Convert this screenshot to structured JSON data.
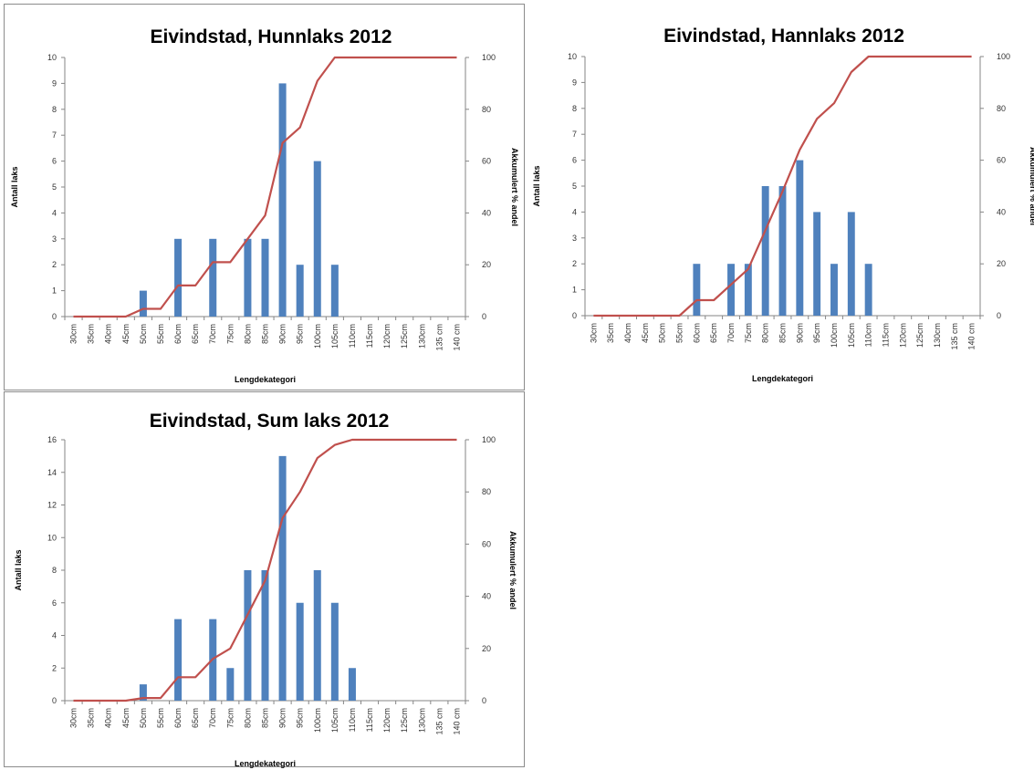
{
  "chart_data": [
    {
      "type": "bar",
      "title": "Eivindstad, Hunnlaks 2012",
      "xlabel": "Lengdekategori",
      "ylabel": "Antall laks",
      "y2label": "Akkumulert % andel",
      "categories": [
        "30cm",
        "35cm",
        "40cm",
        "45cm",
        "50cm",
        "55cm",
        "60cm",
        "65cm",
        "70cm",
        "75cm",
        "80cm",
        "85cm",
        "90cm",
        "95cm",
        "100cm",
        "105cm",
        "110cm",
        "115cm",
        "120cm",
        "125cm",
        "130cm",
        "135 cm",
        "140 cm"
      ],
      "ylim": [
        0,
        10
      ],
      "yticks": [
        "0",
        "1",
        "2",
        "3",
        "4",
        "5",
        "6",
        "7",
        "8",
        "9",
        "10"
      ],
      "y2lim": [
        0,
        100
      ],
      "y2ticks": [
        "0",
        "20",
        "40",
        "60",
        "80",
        "100"
      ],
      "bar_color": "#4f81bd",
      "line_color": "#c0504d",
      "grid": false,
      "series": [
        {
          "values": [
            0,
            0,
            0,
            0,
            1,
            0,
            3,
            0,
            3,
            0,
            3,
            3,
            9,
            2,
            6,
            2,
            0,
            0,
            0,
            0,
            0,
            0,
            0
          ]
        },
        {
          "axis": "secondary",
          "values": [
            0,
            0,
            0,
            0,
            3,
            3,
            12,
            12,
            21,
            21,
            30,
            39,
            67,
            73,
            91,
            100,
            100,
            100,
            100,
            100,
            100,
            100,
            100
          ]
        }
      ]
    },
    {
      "type": "bar",
      "title": "Eivindstad, Hannlaks 2012",
      "xlabel": "Lengdekategori",
      "ylabel": "Antall laks",
      "y2label": "Akkumulert % andel",
      "categories": [
        "30cm",
        "35cm",
        "40cm",
        "45cm",
        "50cm",
        "55cm",
        "60cm",
        "65cm",
        "70cm",
        "75cm",
        "80cm",
        "85cm",
        "90cm",
        "95cm",
        "100cm",
        "105cm",
        "110cm",
        "115cm",
        "120cm",
        "125cm",
        "130cm",
        "135 cm",
        "140 cm"
      ],
      "ylim": [
        0,
        10
      ],
      "yticks": [
        "0",
        "1",
        "2",
        "3",
        "4",
        "5",
        "6",
        "7",
        "8",
        "9",
        "10"
      ],
      "y2lim": [
        0,
        100
      ],
      "y2ticks": [
        "0",
        "20",
        "40",
        "60",
        "80",
        "100"
      ],
      "bar_color": "#4f81bd",
      "line_color": "#c0504d",
      "grid": false,
      "series": [
        {
          "values": [
            0,
            0,
            0,
            0,
            0,
            0,
            2,
            0,
            2,
            2,
            5,
            5,
            6,
            4,
            2,
            4,
            2,
            0,
            0,
            0,
            0,
            0,
            0
          ]
        },
        {
          "axis": "secondary",
          "values": [
            0,
            0,
            0,
            0,
            0,
            0,
            6,
            6,
            12,
            18,
            33,
            48,
            64,
            76,
            82,
            94,
            100,
            100,
            100,
            100,
            100,
            100,
            100
          ]
        }
      ]
    },
    {
      "type": "bar",
      "title": "Eivindstad, Sum laks 2012",
      "xlabel": "Lengdekategori",
      "ylabel": "Antall laks",
      "y2label": "Akkumulert % andel",
      "categories": [
        "30cm",
        "35cm",
        "40cm",
        "45cm",
        "50cm",
        "55cm",
        "60cm",
        "65cm",
        "70cm",
        "75cm",
        "80cm",
        "85cm",
        "90cm",
        "95cm",
        "100cm",
        "105cm",
        "110cm",
        "115cm",
        "120cm",
        "125cm",
        "130cm",
        "135 cm",
        "140 cm"
      ],
      "ylim": [
        0,
        16
      ],
      "yticks": [
        "0",
        "2",
        "4",
        "6",
        "8",
        "10",
        "12",
        "14",
        "16"
      ],
      "y2lim": [
        0,
        100
      ],
      "y2ticks": [
        "0",
        "20",
        "40",
        "60",
        "80",
        "100"
      ],
      "bar_color": "#4f81bd",
      "line_color": "#c0504d",
      "grid": false,
      "series": [
        {
          "values": [
            0,
            0,
            0,
            0,
            1,
            0,
            5,
            0,
            5,
            2,
            8,
            8,
            15,
            6,
            8,
            6,
            2,
            0,
            0,
            0,
            0,
            0,
            0
          ]
        },
        {
          "axis": "secondary",
          "values": [
            0,
            0,
            0,
            0,
            1,
            1,
            9,
            9,
            16,
            20,
            33,
            46,
            70,
            80,
            93,
            98,
            100,
            100,
            100,
            100,
            100,
            100,
            100
          ]
        }
      ]
    }
  ]
}
